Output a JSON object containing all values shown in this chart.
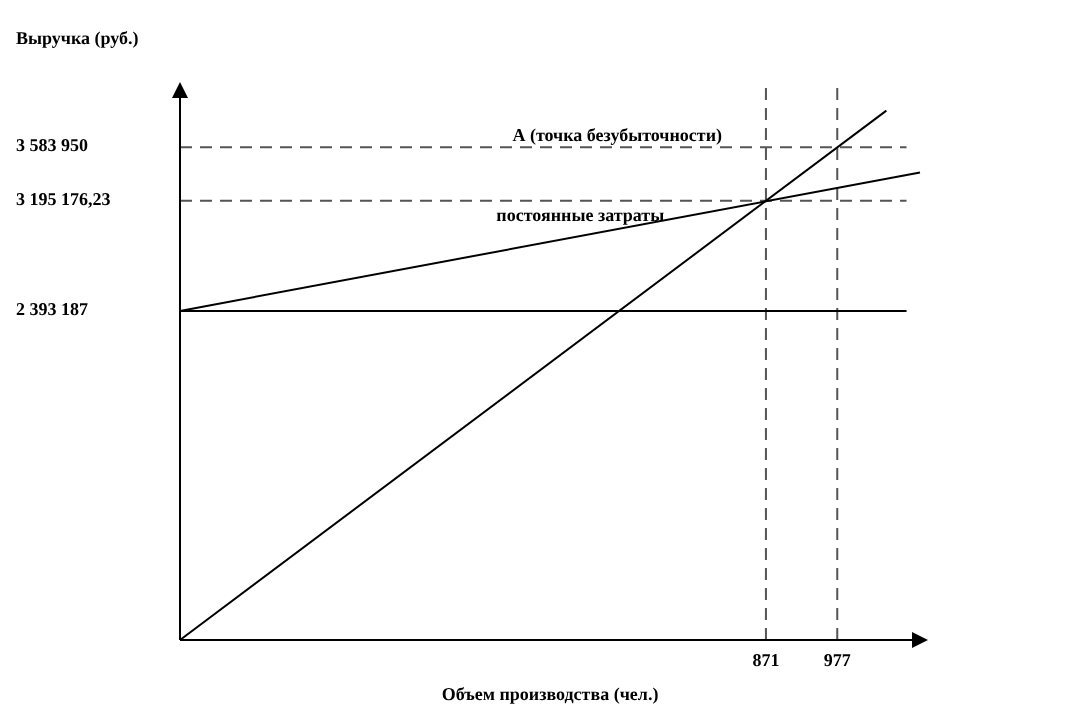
{
  "chart_data": {
    "type": "line",
    "ylabel": "Выручка (руб.)",
    "xlabel": "Объем производства (чел.)",
    "xlim": [
      0,
      1100
    ],
    "ylim": [
      0,
      4000000
    ],
    "xticks": [
      871,
      977
    ],
    "yticks": [
      {
        "value": 2393187,
        "label": "2 393 187"
      },
      {
        "value": 3195176.23,
        "label": "3 195 176,23"
      },
      {
        "value": 3583950,
        "label": "3 583 950"
      }
    ],
    "series": [
      {
        "color": "#000000",
        "x": [
          0,
          1050
        ],
        "values": [
          0,
          3850000
        ]
      },
      {
        "color": "#000000",
        "x": [
          0,
          1100
        ],
        "values": [
          2393187,
          3400000
        ]
      },
      {
        "color": "#000000",
        "x": [
          0,
          1080
        ],
        "values": [
          2393187,
          2393187
        ]
      }
    ],
    "ref_lines": [
      {
        "axis": "y",
        "value": 3583950,
        "line_style": "dashed",
        "color": "#555555"
      },
      {
        "axis": "y",
        "value": 3195176.23,
        "line_style": "dashed",
        "color": "#555555"
      },
      {
        "axis": "x",
        "value": 871,
        "line_style": "dashed",
        "color": "#555555"
      },
      {
        "axis": "x",
        "value": 977,
        "line_style": "dashed",
        "color": "#555555"
      }
    ],
    "annotations": [
      "А (точка безубыточности)",
      "постоянные затраты"
    ],
    "line_style": "solid"
  }
}
